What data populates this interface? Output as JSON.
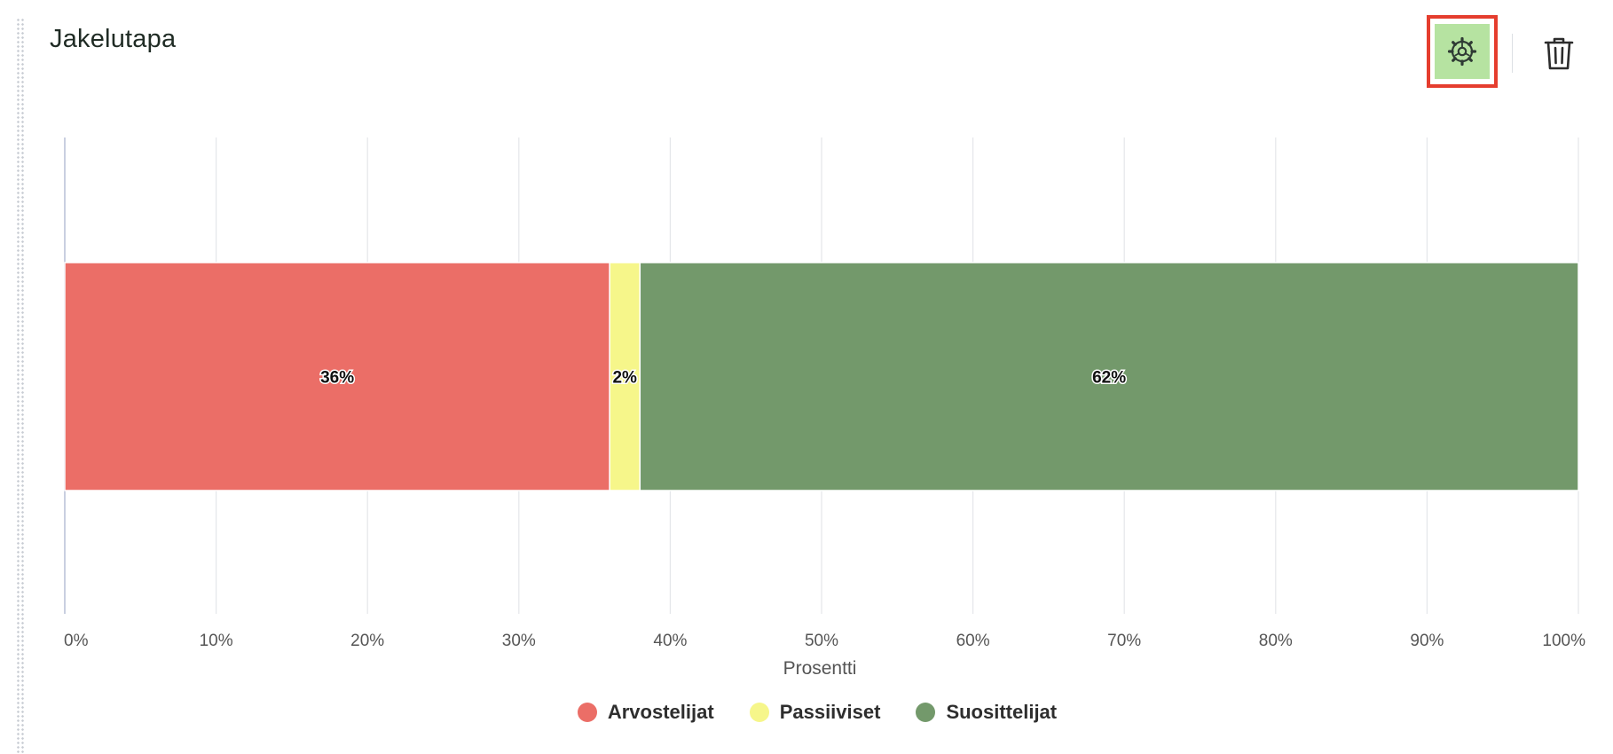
{
  "widget": {
    "title": "Jakelutapa",
    "settings_icon": "gear-icon",
    "delete_icon": "trash-icon"
  },
  "colors": {
    "highlight_border": "#e53d2e",
    "settings_bg": "#b6e3a1",
    "grid": "#e4e6ea",
    "axis_text": "#555555"
  },
  "chart_data": {
    "type": "bar",
    "orientation": "horizontal",
    "stacked": true,
    "xlabel": "Prosentti",
    "xlim": [
      0,
      100
    ],
    "x_ticks": [
      "0%",
      "10%",
      "20%",
      "30%",
      "40%",
      "50%",
      "60%",
      "70%",
      "80%",
      "90%",
      "100%"
    ],
    "grid": true,
    "legend_position": "bottom",
    "series": [
      {
        "name": "Arvostelijat",
        "value": 36,
        "label": "36%",
        "color": "#eb6e67"
      },
      {
        "name": "Passiiviset",
        "value": 2,
        "label": "2%",
        "color": "#f6f68a"
      },
      {
        "name": "Suosittelijat",
        "value": 62,
        "label": "62%",
        "color": "#73996b"
      }
    ]
  }
}
